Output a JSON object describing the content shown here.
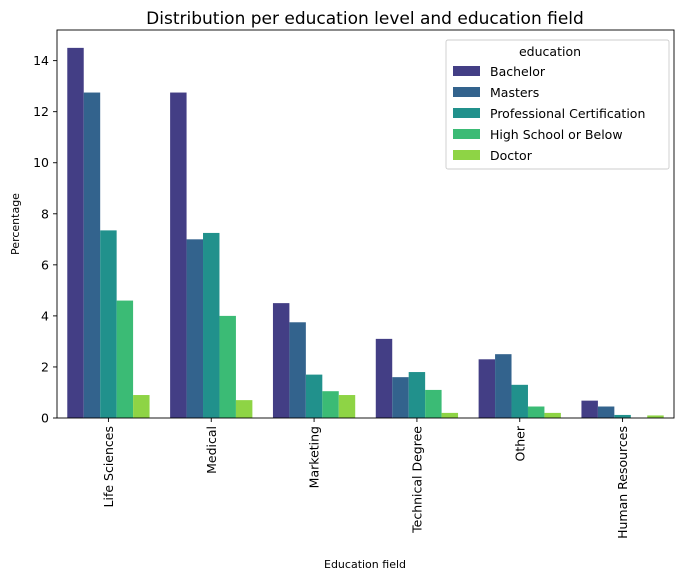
{
  "chart_data": {
    "type": "bar",
    "title": "Distribution per education level and education field",
    "xlabel": "Education field",
    "ylabel": "Percentage",
    "ylim": [
      0,
      15.2
    ],
    "yticks": [
      0,
      2,
      4,
      6,
      8,
      10,
      12,
      14
    ],
    "grid": false,
    "categories": [
      "Life Sciences",
      "Medical",
      "Marketing",
      "Technical Degree",
      "Other",
      "Human Resources"
    ],
    "legend": {
      "title": "education",
      "placement": "top-right"
    },
    "series": [
      {
        "name": "Bachelor",
        "color": "#433e85",
        "values": [
          14.5,
          12.75,
          4.5,
          3.1,
          2.3,
          0.68
        ]
      },
      {
        "name": "Masters",
        "color": "#33638d",
        "values": [
          12.75,
          7.0,
          3.75,
          1.6,
          2.5,
          0.45
        ]
      },
      {
        "name": "Professional Certification",
        "color": "#21918c",
        "values": [
          7.35,
          7.25,
          1.7,
          1.8,
          1.3,
          0.12
        ]
      },
      {
        "name": "High School or Below",
        "color": "#3bbb75",
        "values": [
          4.6,
          4.0,
          1.05,
          1.1,
          0.45,
          0.0
        ]
      },
      {
        "name": "Doctor",
        "color": "#8ed445",
        "values": [
          0.9,
          0.7,
          0.9,
          0.2,
          0.2,
          0.1
        ]
      }
    ]
  }
}
